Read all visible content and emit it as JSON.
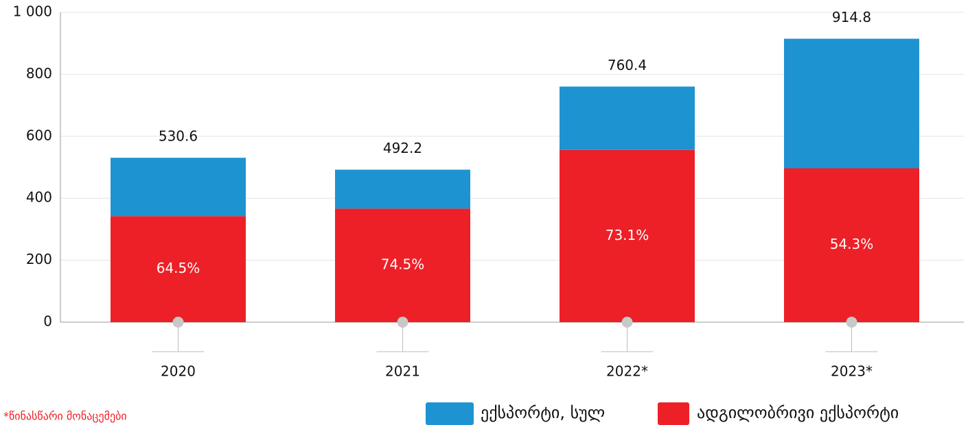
{
  "chart_data": {
    "type": "stacked_bar",
    "categories": [
      "2020",
      "2021",
      "2022*",
      "2023*"
    ],
    "series": [
      {
        "name": "ადგილობრივი ექსპორტი",
        "color": "#ed2027",
        "values": [
          342.2,
          366.7,
          555.9,
          496.7
        ]
      },
      {
        "name": "ექსპორტი, სულ",
        "color": "#1e93d2",
        "values": [
          188.4,
          125.5,
          204.5,
          418.1
        ]
      }
    ],
    "shares": [
      "64.5%",
      "74.5%",
      "73.1%",
      "54.3%"
    ],
    "totals": [
      530.6,
      492.2,
      760.4,
      914.8
    ],
    "ylim": [
      0,
      1000
    ],
    "yticks": [
      0,
      200,
      400,
      600,
      800,
      {
        "value": 1000,
        "label": "1 000"
      }
    ],
    "grid": true,
    "footnote": "*წინასწარი მონაცემები"
  }
}
